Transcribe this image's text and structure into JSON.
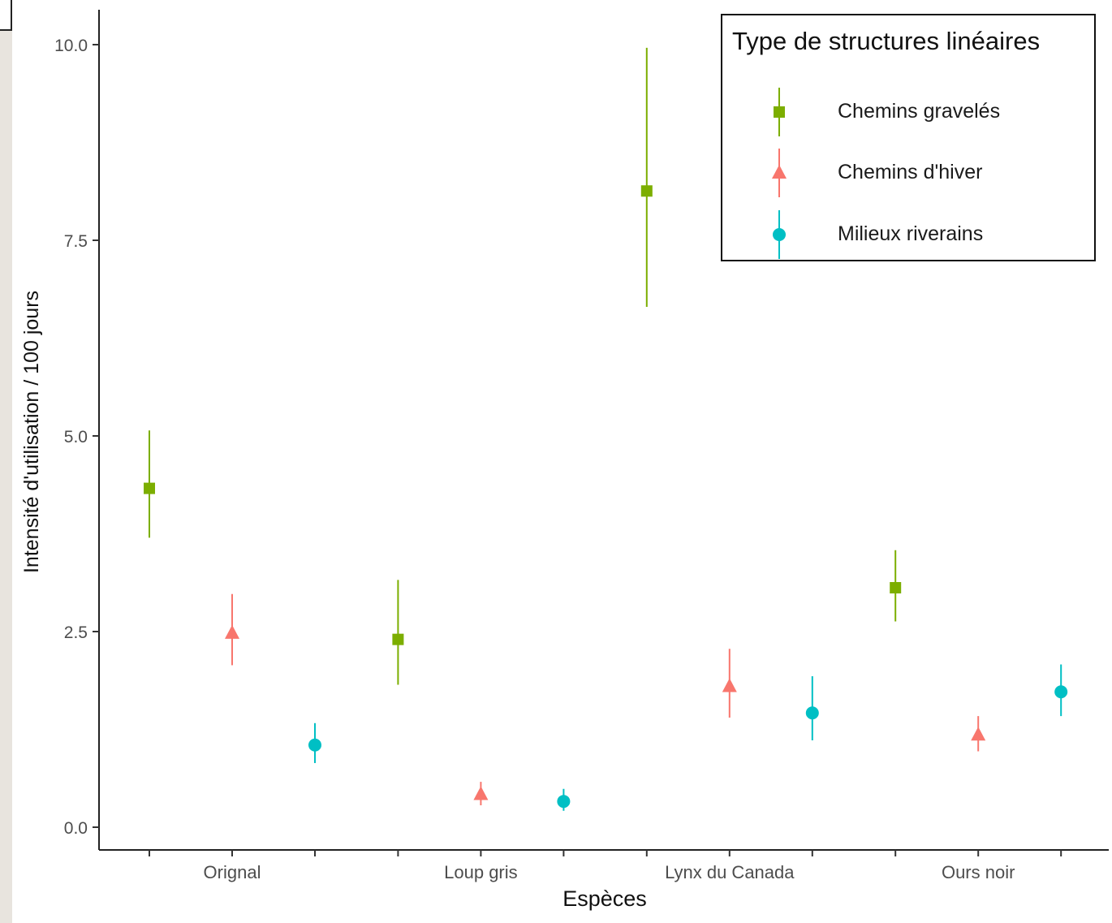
{
  "chart_data": {
    "type": "scatter",
    "subtype": "point-range",
    "xlabel": "Espèces",
    "ylabel": "Intensité d'utilisation / 100 jours",
    "categories": [
      "Orignal",
      "Loup gris",
      "Lynx du Canada",
      "Ours noir"
    ],
    "ylim": [
      -0.28,
      10.45
    ],
    "yticks": [
      "0.0",
      "2.5",
      "5.0",
      "7.5",
      "10.0"
    ],
    "ytick_values": [
      0,
      2.5,
      5.0,
      7.5,
      10.0
    ],
    "grid": false,
    "legend": {
      "title": "Type de structures linéaires",
      "placement": "top-right"
    },
    "series": [
      {
        "name": "Chemins gravelés",
        "color": "#7cae00",
        "marker": "square",
        "values": [
          4.33,
          2.4,
          8.13,
          3.06
        ],
        "lower": [
          3.7,
          1.82,
          6.65,
          2.63
        ],
        "upper": [
          5.07,
          3.16,
          9.96,
          3.54
        ]
      },
      {
        "name": "Chemins d'hiver",
        "color": "#f8766d",
        "marker": "triangle",
        "values": [
          2.48,
          0.42,
          1.8,
          1.18
        ],
        "lower": [
          2.07,
          0.28,
          1.4,
          0.97
        ],
        "upper": [
          2.98,
          0.58,
          2.28,
          1.42
        ]
      },
      {
        "name": "Milieux riverains",
        "color": "#00bfc4",
        "marker": "circle",
        "values": [
          1.05,
          0.33,
          1.46,
          1.73
        ],
        "lower": [
          0.82,
          0.21,
          1.11,
          1.42
        ],
        "upper": [
          1.33,
          0.49,
          1.93,
          2.08
        ]
      }
    ]
  }
}
